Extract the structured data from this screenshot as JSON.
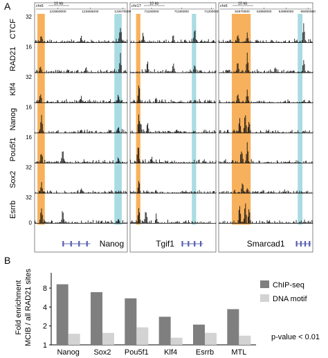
{
  "panel_a": {
    "label": "A",
    "tracks": [
      {
        "name": "CTCF",
        "scale_max": "32"
      },
      {
        "name": "RAD21",
        "scale_max": "16"
      },
      {
        "name": "Klf4",
        "scale_max": "32"
      },
      {
        "name": "Nanog",
        "scale_max": "16"
      },
      {
        "name": "Pou5f1",
        "scale_max": "16"
      },
      {
        "name": "Sox2",
        "scale_max": "32"
      },
      {
        "name": "Esrrb",
        "scale_max": "32"
      }
    ],
    "scale_zero": "0",
    "loci": [
      {
        "chrom": "chr6",
        "scale_bar": "10 kb",
        "coords": [
          "122660000",
          "122665000",
          "122670000"
        ],
        "gene": "Nanog"
      },
      {
        "chrom": "chr17",
        "scale_bar": "10 kb",
        "coords": [
          "71180000",
          "71190000",
          "71200000"
        ],
        "gene": "Tgif1"
      },
      {
        "chrom": "chr6",
        "scale_bar": "10 kb",
        "coords": [
          "64970000",
          "64980000",
          "64990000",
          "65000000"
        ],
        "gene": "Smarcad1"
      }
    ],
    "colors": {
      "orange": "#f7b15c",
      "cyan": "#a9dbe2",
      "peaks": "#111111",
      "gene": "#5860b0"
    }
  },
  "panel_b": {
    "label": "B",
    "chart_data": {
      "type": "bar",
      "ylabel": "Fold enrichment\nMCIB / all RAD21 sites",
      "yscale": "log2",
      "yticks": [
        "1",
        "2",
        "4",
        "8"
      ],
      "ylim": [
        1,
        14
      ],
      "categories": [
        "Nanog",
        "Sox2",
        "Pou5f1",
        "Klf4",
        "Esrrb",
        "MTL"
      ],
      "series": [
        {
          "name": "ChIP-seq",
          "color": "#7f7f7f",
          "values": [
            9.2,
            6.9,
            5.5,
            2.8,
            2.1,
            3.7
          ]
        },
        {
          "name": "DNA motif",
          "color": "#d3d3d3",
          "values": [
            1.5,
            1.55,
            1.9,
            1.3,
            1.55,
            1.4
          ]
        }
      ],
      "legend_position": "right",
      "annotation": "p-value < 0.01"
    }
  }
}
